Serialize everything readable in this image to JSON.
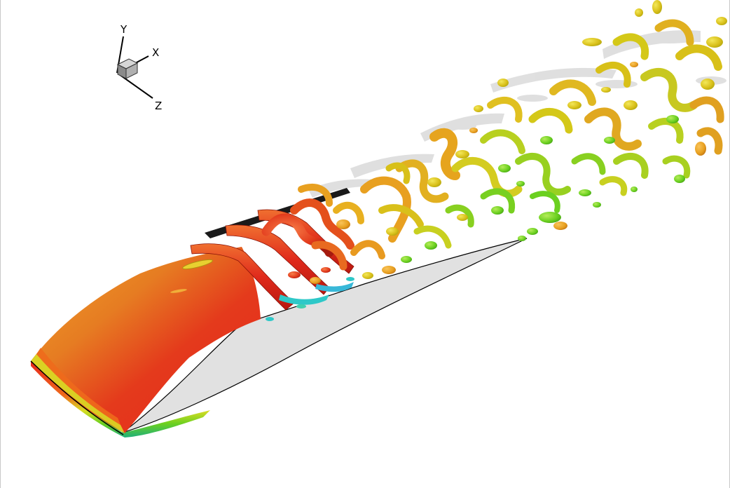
{
  "axis_triad": {
    "x_label": "X",
    "y_label": "Y",
    "z_label": "Z"
  },
  "colors": {
    "background": "#ffffff",
    "airfoil_side": "#e1e1e1",
    "airfoil_edge": "#000000",
    "high": "#e8261c",
    "mid_high": "#f0641e",
    "mid": "#ec9a1e",
    "yellow": "#e3d121",
    "green": "#6bd020",
    "cyan": "#2ec8c8",
    "shadow": "#d8d8d8"
  },
  "icons": [
    "axis-cube-icon"
  ]
}
